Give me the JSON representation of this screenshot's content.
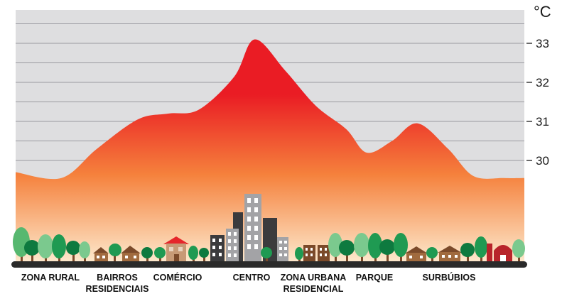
{
  "chart_data": {
    "type": "area",
    "title": "",
    "xlabel": "",
    "ylabel": "",
    "unit": "°C",
    "y_ticks": [
      30,
      31,
      32,
      33
    ],
    "ylim": [
      28.5,
      33.6
    ],
    "grid": true,
    "categories": [
      [
        "ZONA RURAL"
      ],
      [
        "BAIRROS",
        "RESIDENCIAIS"
      ],
      [
        "COMÉRCIO"
      ],
      [
        "CENTRO"
      ],
      [
        "ZONA URBANA",
        "RESIDENCIAL"
      ],
      [
        "PARQUE"
      ],
      [
        "SURBÚBIOS"
      ]
    ],
    "series": [
      {
        "x": [
          0,
          0.09,
          0.16,
          0.24,
          0.3,
          0.36,
          0.43,
          0.47,
          0.53,
          0.59,
          0.65,
          0.69,
          0.74,
          0.79,
          0.85,
          0.9,
          0.96,
          1.0
        ],
        "values": [
          29.7,
          29.55,
          30.3,
          31.05,
          31.2,
          31.3,
          32.15,
          33.1,
          32.3,
          31.4,
          30.8,
          30.2,
          30.5,
          30.95,
          30.3,
          29.6,
          29.55,
          29.55
        ]
      }
    ],
    "gradient_colors": {
      "top": "#ea1c24",
      "middle": "#f5813c",
      "bottom": "#fdebd0"
    },
    "grid_color": "#9a9aa0",
    "background_color": "#dedee0"
  }
}
